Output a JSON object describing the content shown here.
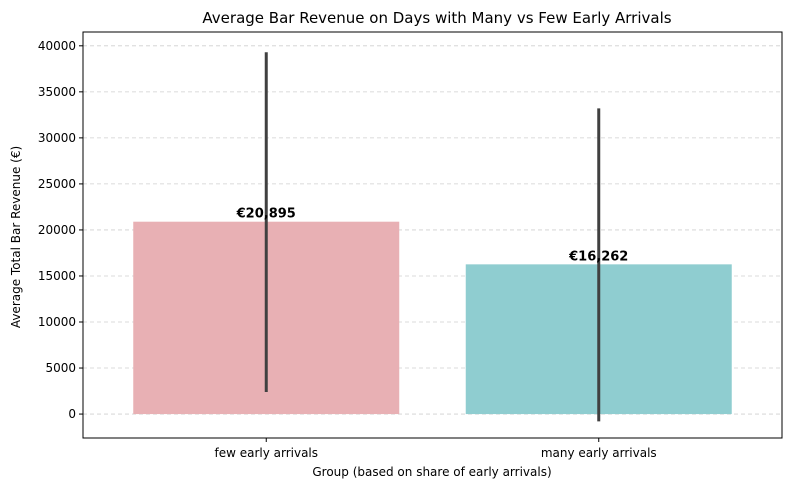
{
  "chart_data": {
    "type": "bar",
    "title": "Average Bar Revenue on Days with Many vs Few Early Arrivals",
    "xlabel": "Group (based on share of early arrivals)",
    "ylabel": "Average Total Bar Revenue (€)",
    "categories": [
      "few early arrivals",
      "many early arrivals"
    ],
    "values": [
      20895,
      16262
    ],
    "value_labels": [
      "€20,895",
      "€16,262"
    ],
    "error_low": [
      2400,
      -800
    ],
    "error_high": [
      39300,
      33200
    ],
    "colors": [
      "#e8b0b4",
      "#8fcdd0"
    ],
    "error_color": "#404040",
    "ylim": [
      -2600,
      41500
    ],
    "yticks": [
      0,
      5000,
      10000,
      15000,
      20000,
      25000,
      30000,
      35000,
      40000
    ],
    "ytick_labels": [
      "0",
      "5000",
      "10000",
      "15000",
      "20000",
      "25000",
      "30000",
      "35000",
      "40000"
    ],
    "grid": true
  }
}
